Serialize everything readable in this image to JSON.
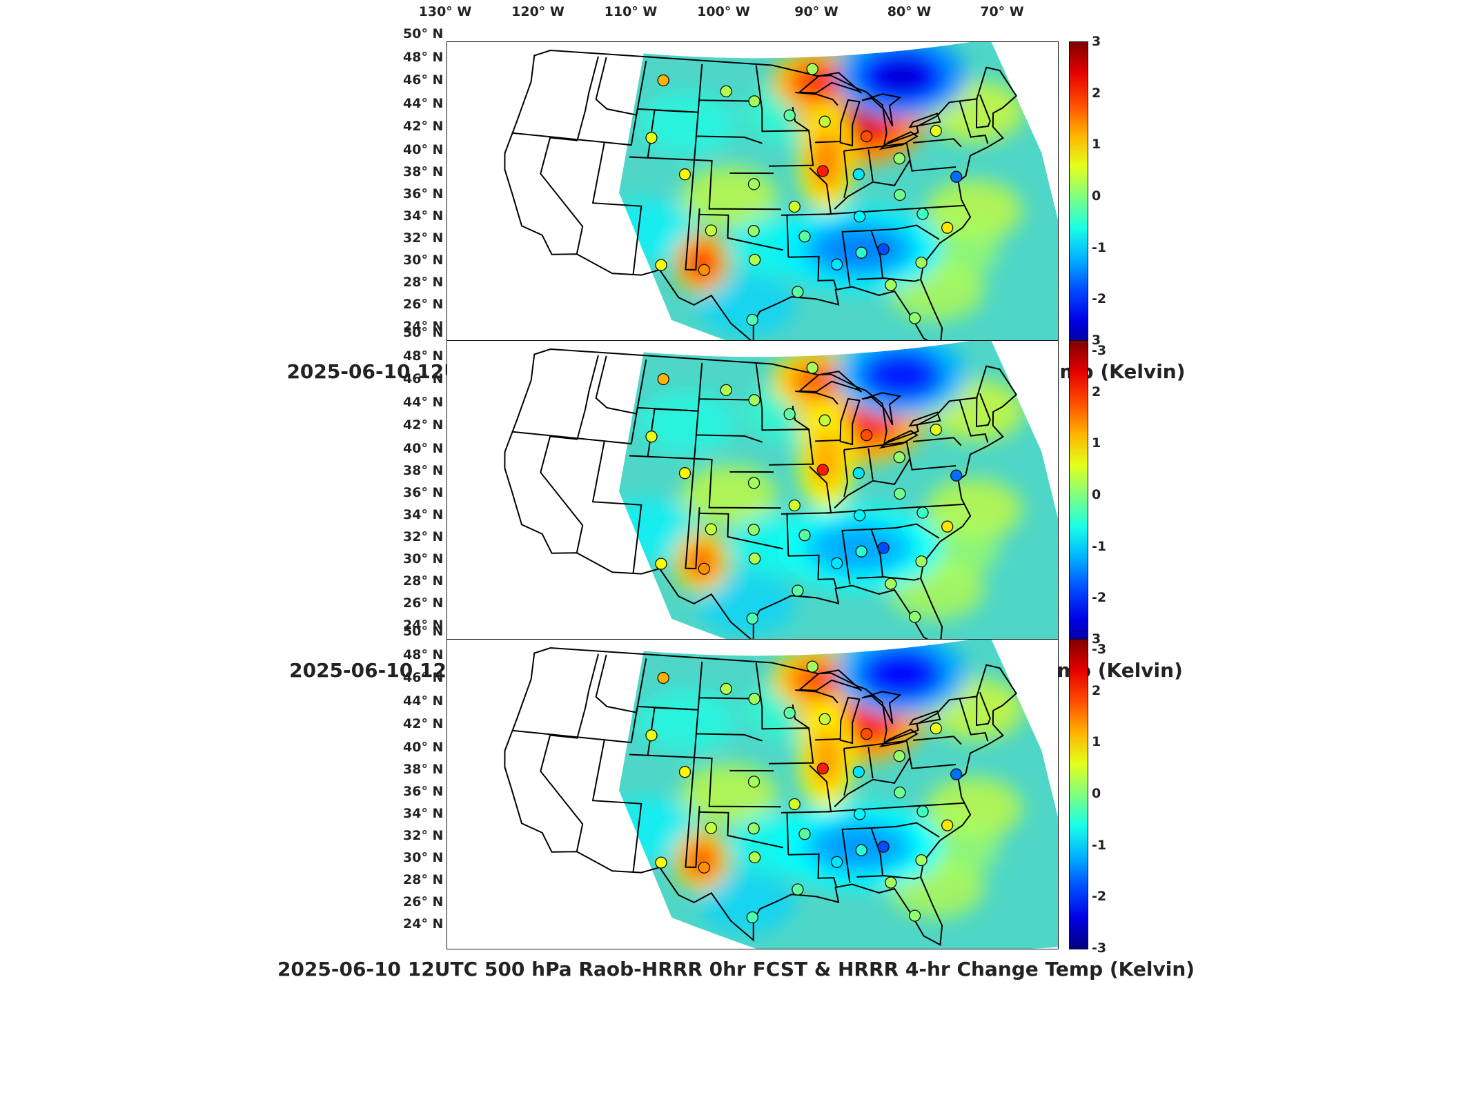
{
  "figure": {
    "lon_labels": [
      "130° W",
      "120° W",
      "110° W",
      "100° W",
      "90° W",
      "80° W",
      "70° W"
    ],
    "lat_labels": [
      "50° N",
      "48° N",
      "46° N",
      "44° N",
      "42° N",
      "40° N",
      "38° N",
      "36° N",
      "34° N",
      "32° N",
      "30° N",
      "28° N",
      "26° N",
      "24° N"
    ],
    "colorbar": {
      "ticks": [
        "3",
        "2",
        "1",
        "0",
        "-1",
        "-2",
        "-3"
      ],
      "range": [
        -3,
        3
      ],
      "colormap": "jet"
    },
    "panels": [
      {
        "title": "2025-06-10 12UTC 500 hPa Raob-HRRR 0hr FCST & RTV 4-hr Change Temp (Kelvin)"
      },
      {
        "title": "2025-06-10 12UTC 500 hPa Raob-WRF 0hr FCST & WRF 4-hr Change Temp (Kelvin)"
      },
      {
        "title": "2025-06-10 12UTC 500 hPa Raob-HRRR 0hr FCST & HRRR 4-hr Change Temp (Kelvin)"
      }
    ]
  },
  "map_data": {
    "projection": "lambert-conformal-conus",
    "lon_ticks": [
      -130,
      -120,
      -110,
      -100,
      -90,
      -80,
      -70
    ],
    "lat_ticks": [
      50,
      48,
      46,
      44,
      42,
      40,
      38,
      36,
      34,
      32,
      30,
      28,
      26,
      24
    ],
    "variable": "500 hPa temperature change",
    "units": "Kelvin",
    "colors": {
      "background_field": "#4fd6c8",
      "strong_warm": "#d7191c",
      "warm": "#f9d423",
      "cool": "#2b83e4",
      "strong_cool": "#08008c",
      "boundaries": "#000000"
    },
    "anomalies": [
      {
        "region": "Michigan / Great Lakes",
        "sign": "warm",
        "peak_K": 2.5
      },
      {
        "region": "Upper Wisconsin",
        "sign": "warm",
        "peak_K": 2.0
      },
      {
        "region": "Illinois",
        "sign": "warm",
        "peak_K": 1.5
      },
      {
        "region": "Quebec / Ontario",
        "sign": "cool",
        "peak_K": -2.5
      },
      {
        "region": "Southeast / Gulf",
        "sign": "cool",
        "peak_K": -1.5
      },
      {
        "region": "West Texas",
        "sign": "warm",
        "peak_K": 2.0
      }
    ],
    "raob_stations": [
      {
        "lon": -108.5,
        "lat": 47.5,
        "diff_K": 1.2
      },
      {
        "lon": -100.8,
        "lat": 46.8,
        "diff_K": 0.3
      },
      {
        "lon": -97.4,
        "lat": 46.0,
        "diff_K": 0.2
      },
      {
        "lon": -93.3,
        "lat": 44.8,
        "diff_K": -0.2
      },
      {
        "lon": -89.3,
        "lat": 44.2,
        "diff_K": 0.4
      },
      {
        "lon": -84.8,
        "lat": 42.8,
        "diff_K": 1.8
      },
      {
        "lon": -90.0,
        "lat": 40.1,
        "diff_K": 2.1
      },
      {
        "lon": -86.2,
        "lat": 39.7,
        "diff_K": -0.9
      },
      {
        "lon": -81.6,
        "lat": 40.8,
        "diff_K": 0.1
      },
      {
        "lon": -77.0,
        "lat": 42.8,
        "diff_K": 0.6
      },
      {
        "lon": -76.0,
        "lat": 38.9,
        "diff_K": -1.6
      },
      {
        "lon": -108.9,
        "lat": 42.7,
        "diff_K": 0.6
      },
      {
        "lon": -104.8,
        "lat": 39.8,
        "diff_K": 0.8
      },
      {
        "lon": -97.4,
        "lat": 39.1,
        "diff_K": 0.2
      },
      {
        "lon": -93.2,
        "lat": 37.2,
        "diff_K": 0.5
      },
      {
        "lon": -101.7,
        "lat": 35.2,
        "diff_K": 0.4
      },
      {
        "lon": -97.4,
        "lat": 35.2,
        "diff_K": 0.1
      },
      {
        "lon": -106.4,
        "lat": 32.2,
        "diff_K": 0.7
      },
      {
        "lon": -102.2,
        "lat": 31.9,
        "diff_K": 1.4
      },
      {
        "lon": -97.3,
        "lat": 32.8,
        "diff_K": 0.3
      },
      {
        "lon": -92.3,
        "lat": 34.7,
        "diff_K": -0.2
      },
      {
        "lon": -89.3,
        "lat": 32.3,
        "diff_K": -0.9
      },
      {
        "lon": -86.8,
        "lat": 33.2,
        "diff_K": -0.5
      },
      {
        "lon": -84.6,
        "lat": 33.4,
        "diff_K": -1.8
      },
      {
        "lon": -81.1,
        "lat": 32.1,
        "diff_K": 0.2
      },
      {
        "lon": -78.0,
        "lat": 34.8,
        "diff_K": 0.9
      },
      {
        "lon": -80.2,
        "lat": 36.1,
        "diff_K": -0.4
      },
      {
        "lon": -86.6,
        "lat": 36.2,
        "diff_K": -0.8
      },
      {
        "lon": -82.2,
        "lat": 37.8,
        "diff_K": -0.1
      },
      {
        "lon": -97.5,
        "lat": 27.8,
        "diff_K": -0.3
      },
      {
        "lon": -84.3,
        "lat": 30.4,
        "diff_K": 0.2
      },
      {
        "lon": -82.4,
        "lat": 27.7,
        "diff_K": 0.1
      },
      {
        "lon": -93.2,
        "lat": 30.1,
        "diff_K": -0.2
      },
      {
        "lon": -90.2,
        "lat": 48.6,
        "diff_K": 0.2
      }
    ]
  }
}
